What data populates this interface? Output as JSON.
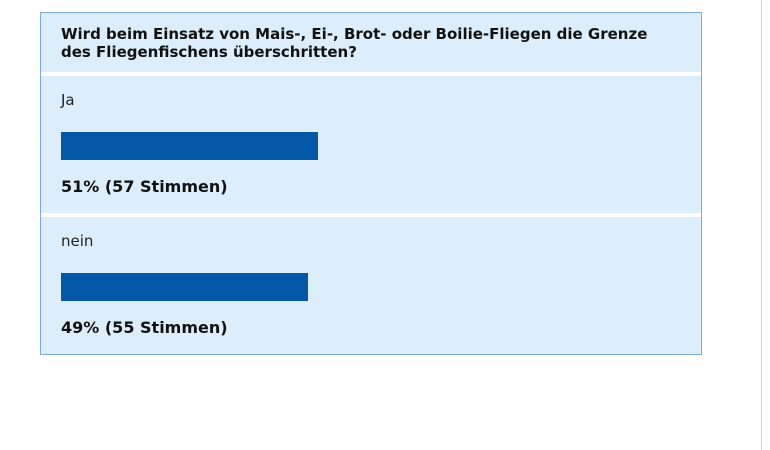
{
  "poll": {
    "question": "Wird beim Einsatz von Mais-, Ei-, Brot- oder Boilie-Fliegen die Grenze des Fliegenfischens überschritten?",
    "bar_color": "#0558a7",
    "options": [
      {
        "label": "Ja",
        "percent": 51,
        "result": "51% (57 Stimmen)"
      },
      {
        "label": "nein",
        "percent": 49,
        "result": "49% (55 Stimmen)"
      }
    ]
  }
}
